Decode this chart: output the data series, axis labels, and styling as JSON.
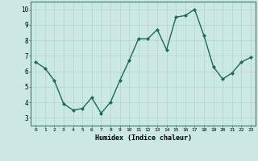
{
  "x": [
    0,
    1,
    2,
    3,
    4,
    5,
    6,
    7,
    8,
    9,
    10,
    11,
    12,
    13,
    14,
    15,
    16,
    17,
    18,
    19,
    20,
    21,
    22,
    23
  ],
  "y": [
    6.6,
    6.2,
    5.4,
    3.9,
    3.5,
    3.6,
    4.3,
    3.3,
    4.0,
    5.4,
    6.7,
    8.1,
    8.1,
    8.7,
    7.4,
    9.5,
    9.6,
    10.0,
    8.3,
    6.3,
    5.5,
    5.9,
    6.6,
    6.9
  ],
  "xlabel": "Humidex (Indice chaleur)",
  "ylim": [
    2.5,
    10.5
  ],
  "xlim": [
    -0.5,
    23.5
  ],
  "yticks": [
    3,
    4,
    5,
    6,
    7,
    8,
    9,
    10
  ],
  "line_color": "#1a6b5a",
  "marker_color": "#1a6b5a",
  "bg_color": "#cce8e4",
  "grid_color": "#aed4cf",
  "fig_bg": "#cce8e4"
}
